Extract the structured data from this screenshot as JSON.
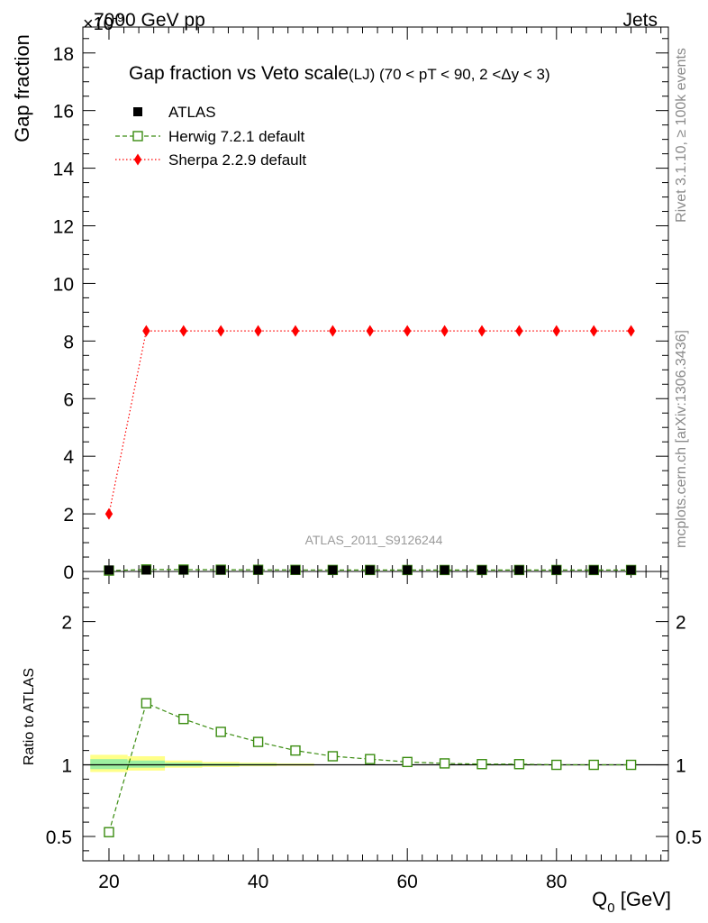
{
  "header": {
    "exponent_label": "×10",
    "exponent_power": "-9",
    "energy_label": "7000 GeV pp",
    "process_label": "Jets"
  },
  "side": {
    "rivet_label": "Rivet 3.1.10, ≥ 100k events",
    "source_label": "mcplots.cern.ch [arXiv:1306.3436]"
  },
  "chart_data": {
    "type": "line",
    "title": "Gap fraction vs Veto scale",
    "subtitle": "(LJ) (70 < pT <  90, 2 <Δy < 3)",
    "watermark": "ATLAS_2011_S9126244",
    "xlabel": "Q",
    "xlabel_sub": "0",
    "xlabel_unit": " [GeV]",
    "ylabel": "Gap fraction",
    "ratio_ylabel": "Ratio to ATLAS",
    "xlim": [
      16.5,
      95
    ],
    "ylim": [
      0,
      18.9
    ],
    "ratio_ylim": [
      0.33,
      2.35
    ],
    "x_ticks": [
      20,
      40,
      60,
      80
    ],
    "y_ticks": [
      0,
      2,
      4,
      6,
      8,
      10,
      12,
      14,
      16,
      18
    ],
    "ratio_ticks": [
      0.5,
      1,
      2
    ],
    "ratio_tick_labels": [
      "0.5",
      "1",
      "2"
    ],
    "x": [
      20,
      25,
      30,
      35,
      40,
      45,
      50,
      55,
      60,
      65,
      70,
      75,
      80,
      85,
      90
    ],
    "series": [
      {
        "name": "ATLAS",
        "color": "#000000",
        "marker": "square",
        "values": [
          0.05,
          0.05,
          0.05,
          0.05,
          0.05,
          0.05,
          0.05,
          0.05,
          0.05,
          0.05,
          0.05,
          0.05,
          0.05,
          0.05,
          0.05
        ]
      },
      {
        "name": "Herwig 7.2.1 default",
        "color": "#3a8c10",
        "marker": "open-square",
        "line": "dashed",
        "values": [
          0.03,
          0.07,
          0.065,
          0.06,
          0.057,
          0.054,
          0.052,
          0.051,
          0.05,
          0.05,
          0.05,
          0.05,
          0.05,
          0.05,
          0.05
        ]
      },
      {
        "name": "Sherpa 2.2.9 default",
        "color": "#ff0000",
        "marker": "diamond",
        "line": "dotted",
        "values": [
          2.0,
          8.35,
          8.35,
          8.35,
          8.35,
          8.35,
          8.35,
          8.35,
          8.35,
          8.35,
          8.35,
          8.35,
          8.35,
          8.35,
          8.35
        ]
      }
    ],
    "ratio": {
      "series": "Herwig 7.2.1 default",
      "values": [
        0.53,
        1.43,
        1.32,
        1.23,
        1.16,
        1.1,
        1.06,
        1.04,
        1.02,
        1.01,
        1.005,
        1.005,
        1.0,
        1.0,
        1.0
      ],
      "band_bins": [
        {
          "x0": 17.5,
          "x1": 22.5,
          "yellow": [
            0.95,
            1.07
          ],
          "green": [
            0.97,
            1.04
          ]
        },
        {
          "x0": 22.5,
          "x1": 27.5,
          "yellow": [
            0.96,
            1.06
          ],
          "green": [
            0.98,
            1.03
          ]
        },
        {
          "x0": 27.5,
          "x1": 32.5,
          "yellow": [
            0.98,
            1.03
          ],
          "green": [
            0.99,
            1.015
          ]
        },
        {
          "x0": 32.5,
          "x1": 37.5,
          "yellow": [
            0.985,
            1.02
          ],
          "green": [
            0.993,
            1.01
          ]
        },
        {
          "x0": 37.5,
          "x1": 42.5,
          "yellow": [
            0.99,
            1.015
          ],
          "green": [
            0.995,
            1.008
          ]
        },
        {
          "x0": 42.5,
          "x1": 47.5,
          "yellow": [
            0.993,
            1.01
          ],
          "green": [
            0.997,
            1.005
          ]
        }
      ]
    },
    "legend": "top-left",
    "grid": false
  }
}
